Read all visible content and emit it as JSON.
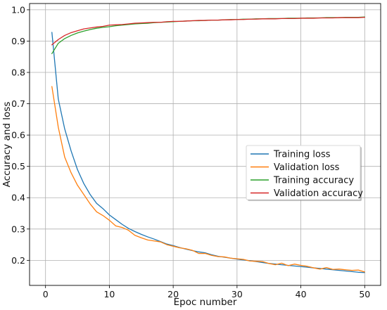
{
  "chart_data": {
    "type": "line",
    "xlabel": "Epoc number",
    "ylabel": "Accuracy and loss",
    "xlim": [
      -2.5,
      52.5
    ],
    "ylim": [
      0.12,
      1.02
    ],
    "xticks": [
      0,
      10,
      20,
      30,
      40,
      50
    ],
    "yticks": [
      0.2,
      0.3,
      0.4,
      0.5,
      0.6,
      0.7,
      0.8,
      0.9,
      1.0
    ],
    "grid": true,
    "legend_position": "center-right",
    "x": [
      1,
      2,
      3,
      4,
      5,
      6,
      7,
      8,
      9,
      10,
      11,
      12,
      13,
      14,
      15,
      16,
      17,
      18,
      19,
      20,
      21,
      22,
      23,
      24,
      25,
      26,
      27,
      28,
      29,
      30,
      31,
      32,
      33,
      34,
      35,
      36,
      37,
      38,
      39,
      40,
      41,
      42,
      43,
      44,
      45,
      46,
      47,
      48,
      49,
      50
    ],
    "series": [
      {
        "name": "Training loss",
        "color": "#1f77b4",
        "values": [
          0.928,
          0.715,
          0.62,
          0.55,
          0.49,
          0.445,
          0.41,
          0.382,
          0.365,
          0.345,
          0.33,
          0.315,
          0.302,
          0.292,
          0.283,
          0.275,
          0.268,
          0.26,
          0.252,
          0.247,
          0.241,
          0.236,
          0.231,
          0.227,
          0.224,
          0.218,
          0.213,
          0.21,
          0.207,
          0.204,
          0.201,
          0.199,
          0.196,
          0.193,
          0.19,
          0.188,
          0.186,
          0.184,
          0.182,
          0.18,
          0.178,
          0.176,
          0.174,
          0.172,
          0.17,
          0.168,
          0.166,
          0.164,
          0.162,
          0.161
        ]
      },
      {
        "name": "Validation loss",
        "color": "#ff7f0e",
        "values": [
          0.755,
          0.625,
          0.53,
          0.48,
          0.44,
          0.41,
          0.38,
          0.355,
          0.343,
          0.328,
          0.31,
          0.305,
          0.296,
          0.28,
          0.272,
          0.265,
          0.262,
          0.259,
          0.25,
          0.245,
          0.24,
          0.237,
          0.232,
          0.222,
          0.222,
          0.216,
          0.212,
          0.211,
          0.207,
          0.205,
          0.203,
          0.198,
          0.197,
          0.196,
          0.19,
          0.186,
          0.191,
          0.183,
          0.188,
          0.184,
          0.181,
          0.176,
          0.172,
          0.177,
          0.171,
          0.172,
          0.17,
          0.168,
          0.169,
          0.163
        ]
      },
      {
        "name": "Training accuracy",
        "color": "#2ca02c",
        "values": [
          0.86,
          0.893,
          0.908,
          0.918,
          0.926,
          0.932,
          0.937,
          0.941,
          0.944,
          0.946,
          0.949,
          0.951,
          0.953,
          0.955,
          0.956,
          0.957,
          0.959,
          0.96,
          0.961,
          0.962,
          0.963,
          0.964,
          0.965,
          0.965,
          0.966,
          0.967,
          0.967,
          0.968,
          0.969,
          0.969,
          0.97,
          0.97,
          0.971,
          0.971,
          0.972,
          0.972,
          0.972,
          0.973,
          0.973,
          0.973,
          0.974,
          0.974,
          0.974,
          0.975,
          0.975,
          0.975,
          0.976,
          0.976,
          0.976,
          0.977
        ]
      },
      {
        "name": "Validation accuracy",
        "color": "#d62728",
        "values": [
          0.888,
          0.905,
          0.918,
          0.927,
          0.933,
          0.939,
          0.942,
          0.945,
          0.947,
          0.951,
          0.952,
          0.953,
          0.955,
          0.957,
          0.958,
          0.959,
          0.96,
          0.96,
          0.962,
          0.963,
          0.963,
          0.964,
          0.965,
          0.966,
          0.966,
          0.967,
          0.967,
          0.968,
          0.968,
          0.969,
          0.969,
          0.97,
          0.97,
          0.971,
          0.971,
          0.971,
          0.972,
          0.972,
          0.972,
          0.973,
          0.973,
          0.973,
          0.974,
          0.974,
          0.974,
          0.975,
          0.975,
          0.975,
          0.975,
          0.976
        ]
      }
    ]
  }
}
